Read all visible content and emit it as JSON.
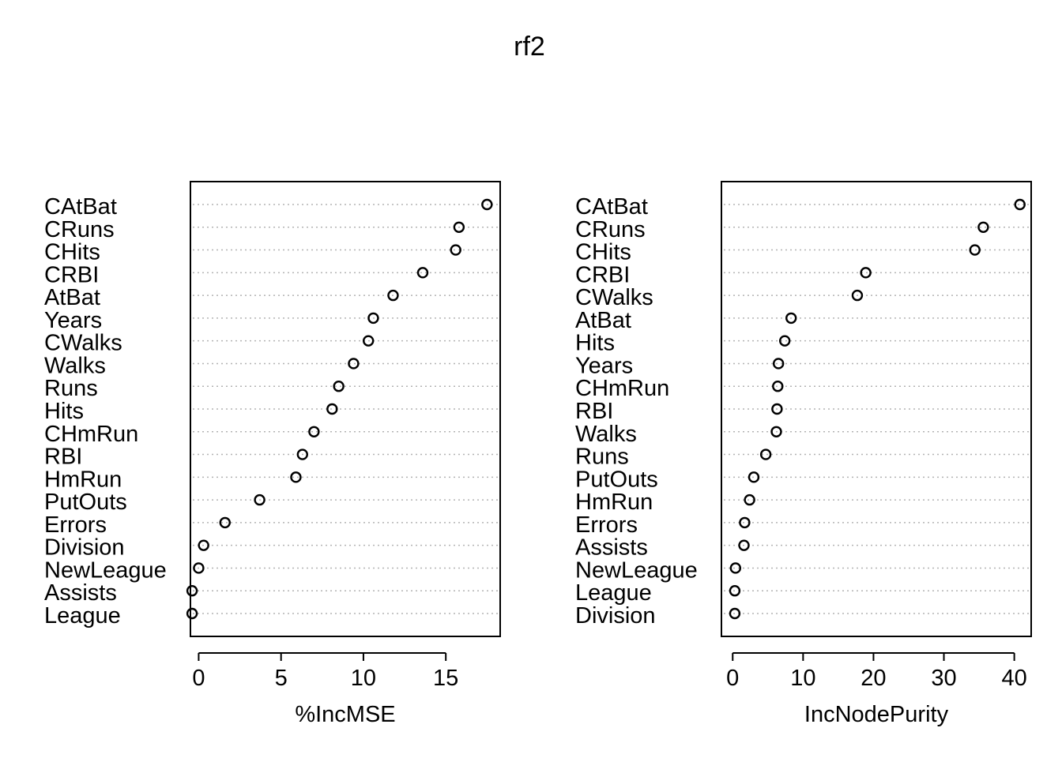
{
  "title": "rf2",
  "chart_data": [
    {
      "type": "scatter",
      "subtype": "dotchart",
      "xlabel": "%IncMSE",
      "xlim": [
        -0.5,
        18.3
      ],
      "xticks": [
        0,
        5,
        10,
        15
      ],
      "grid": "dotted horizontal",
      "categories": [
        "CAtBat",
        "CRuns",
        "CHits",
        "CRBI",
        "AtBat",
        "Years",
        "CWalks",
        "Walks",
        "Runs",
        "Hits",
        "CHmRun",
        "RBI",
        "HmRun",
        "PutOuts",
        "Errors",
        "Division",
        "NewLeague",
        "Assists",
        "League"
      ],
      "values": [
        17.5,
        15.8,
        15.6,
        13.6,
        11.8,
        10.6,
        10.3,
        9.4,
        8.5,
        8.1,
        7.0,
        6.3,
        5.9,
        3.7,
        1.6,
        0.3,
        0.0,
        -0.4,
        -0.4
      ]
    },
    {
      "type": "scatter",
      "subtype": "dotchart",
      "xlabel": "IncNodePurity",
      "xlim": [
        -1.6,
        42.4
      ],
      "xticks": [
        0,
        10,
        20,
        30,
        40
      ],
      "grid": "dotted horizontal",
      "categories": [
        "CAtBat",
        "CRuns",
        "CHits",
        "CRBI",
        "CWalks",
        "AtBat",
        "Hits",
        "Years",
        "CHmRun",
        "RBI",
        "Walks",
        "Runs",
        "PutOuts",
        "HmRun",
        "Errors",
        "Assists",
        "NewLeague",
        "League",
        "Division"
      ],
      "values": [
        40.8,
        35.6,
        34.4,
        18.9,
        17.7,
        8.3,
        7.4,
        6.5,
        6.4,
        6.3,
        6.2,
        4.7,
        3.0,
        2.4,
        1.7,
        1.6,
        0.4,
        0.3,
        0.3
      ]
    }
  ]
}
